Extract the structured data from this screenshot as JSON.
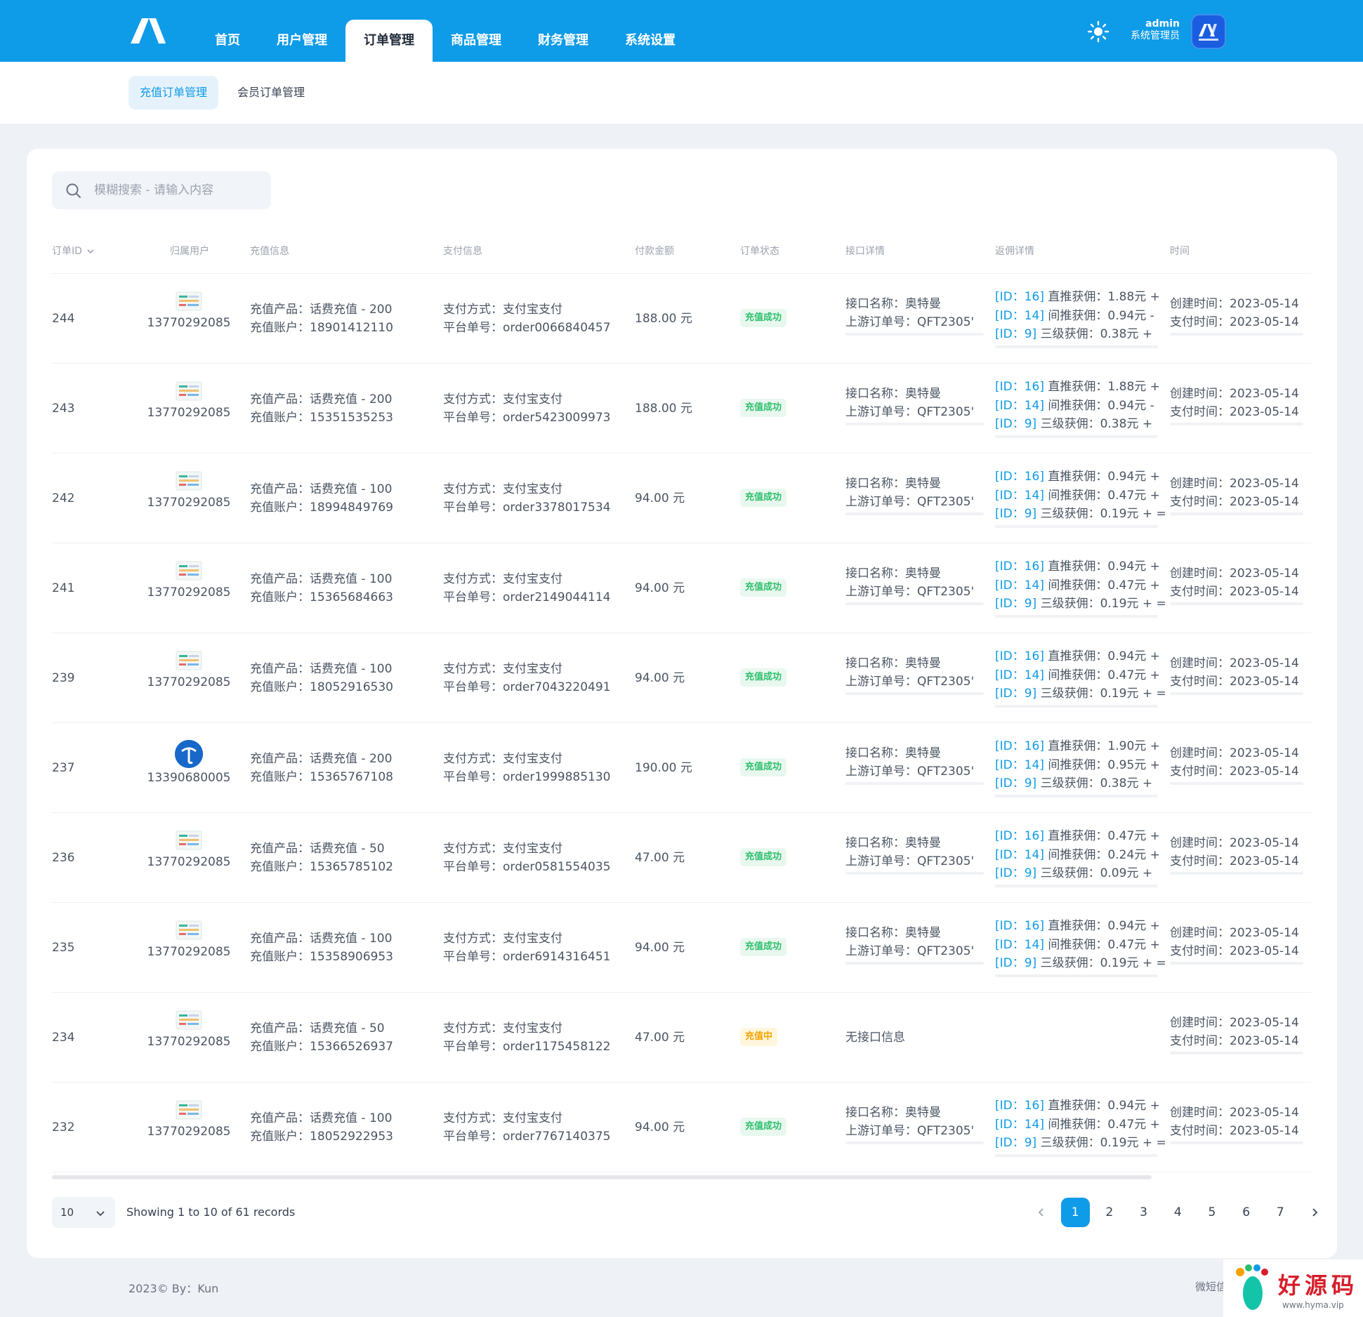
{
  "header": {
    "nav": [
      {
        "label": "首页",
        "active": false
      },
      {
        "label": "用户管理",
        "active": false
      },
      {
        "label": "订单管理",
        "active": true
      },
      {
        "label": "商品管理",
        "active": false
      },
      {
        "label": "财务管理",
        "active": false
      },
      {
        "label": "系统设置",
        "active": false
      }
    ],
    "user_name": "admin",
    "user_role": "系统管理员",
    "accent_color": "#0e9be8",
    "theme_icon": "sun-icon"
  },
  "subnav": {
    "tabs": [
      "充值订单管理",
      "会员订单管理"
    ],
    "active_tab": "充值订单管理"
  },
  "search": {
    "placeholder": "模糊搜索 - 请输入内容"
  },
  "table": {
    "columns": [
      "订单ID",
      "归属用户",
      "充值信息",
      "支付信息",
      "付款金额",
      "订单状态",
      "接口详情",
      "返佣详情",
      "时间"
    ],
    "rows": [
      {
        "id": "244",
        "avatar": "thumbnail",
        "user": "13770292085",
        "product": "充值产品：话费充值 - 200",
        "account": "充值账户：18901412110",
        "pay_method": "支付方式：支付宝支付",
        "platform_no": "平台单号：order0066840457",
        "amount": "188.00 元",
        "status": "充值成功",
        "status_type": "success",
        "api_name": "接口名称：奥特曼",
        "upstream_no": "上游订单号：QFT2305'",
        "rebates": [
          {
            "tag": "[ID：16]",
            "text": " 直推获佣：1.88元 +"
          },
          {
            "tag": "[ID：14]",
            "text": " 间推获佣：0.94元 -"
          },
          {
            "tag": "[ID：9]",
            "text": " 三级获佣：0.38元 +"
          }
        ],
        "created": "创建时间：2023-05-14",
        "paid": "支付时间：2023-05-14"
      },
      {
        "id": "243",
        "avatar": "thumbnail",
        "user": "13770292085",
        "product": "充值产品：话费充值 - 200",
        "account": "充值账户：15351535253",
        "pay_method": "支付方式：支付宝支付",
        "platform_no": "平台单号：order5423009973",
        "amount": "188.00 元",
        "status": "充值成功",
        "status_type": "success",
        "api_name": "接口名称：奥特曼",
        "upstream_no": "上游订单号：QFT2305'",
        "rebates": [
          {
            "tag": "[ID：16]",
            "text": " 直推获佣：1.88元 +"
          },
          {
            "tag": "[ID：14]",
            "text": " 间推获佣：0.94元 -"
          },
          {
            "tag": "[ID：9]",
            "text": " 三级获佣：0.38元 +"
          }
        ],
        "created": "创建时间：2023-05-14",
        "paid": "支付时间：2023-05-14"
      },
      {
        "id": "242",
        "avatar": "thumbnail",
        "user": "13770292085",
        "product": "充值产品：话费充值 - 100",
        "account": "充值账户：18994849769",
        "pay_method": "支付方式：支付宝支付",
        "platform_no": "平台单号：order3378017534",
        "amount": "94.00 元",
        "status": "充值成功",
        "status_type": "success",
        "api_name": "接口名称：奥特曼",
        "upstream_no": "上游订单号：QFT2305'",
        "rebates": [
          {
            "tag": "[ID：16]",
            "text": " 直推获佣：0.94元 +"
          },
          {
            "tag": "[ID：14]",
            "text": " 间推获佣：0.47元 +"
          },
          {
            "tag": "[ID：9]",
            "text": " 三级获佣：0.19元 + ="
          }
        ],
        "created": "创建时间：2023-05-14",
        "paid": "支付时间：2023-05-14"
      },
      {
        "id": "241",
        "avatar": "thumbnail",
        "user": "13770292085",
        "product": "充值产品：话费充值 - 100",
        "account": "充值账户：15365684663",
        "pay_method": "支付方式：支付宝支付",
        "platform_no": "平台单号：order2149044114",
        "amount": "94.00 元",
        "status": "充值成功",
        "status_type": "success",
        "api_name": "接口名称：奥特曼",
        "upstream_no": "上游订单号：QFT2305'",
        "rebates": [
          {
            "tag": "[ID：16]",
            "text": " 直推获佣：0.94元 +"
          },
          {
            "tag": "[ID：14]",
            "text": " 间推获佣：0.47元 +"
          },
          {
            "tag": "[ID：9]",
            "text": " 三级获佣：0.19元 + ="
          }
        ],
        "created": "创建时间：2023-05-14",
        "paid": "支付时间：2023-05-14"
      },
      {
        "id": "239",
        "avatar": "thumbnail",
        "user": "13770292085",
        "product": "充值产品：话费充值 - 100",
        "account": "充值账户：18052916530",
        "pay_method": "支付方式：支付宝支付",
        "platform_no": "平台单号：order7043220491",
        "amount": "94.00 元",
        "status": "充值成功",
        "status_type": "success",
        "api_name": "接口名称：奥特曼",
        "upstream_no": "上游订单号：QFT2305'",
        "rebates": [
          {
            "tag": "[ID：16]",
            "text": " 直推获佣：0.94元 +"
          },
          {
            "tag": "[ID：14]",
            "text": " 间推获佣：0.47元 +"
          },
          {
            "tag": "[ID：9]",
            "text": " 三级获佣：0.19元 + ="
          }
        ],
        "created": "创建时间：2023-05-14",
        "paid": "支付时间：2023-05-14"
      },
      {
        "id": "237",
        "avatar": "telecom-logo",
        "user": "13390680005",
        "product": "充值产品：话费充值 - 200",
        "account": "充值账户：15365767108",
        "pay_method": "支付方式：支付宝支付",
        "platform_no": "平台单号：order1999885130",
        "amount": "190.00 元",
        "status": "充值成功",
        "status_type": "success",
        "api_name": "接口名称：奥特曼",
        "upstream_no": "上游订单号：QFT2305'",
        "rebates": [
          {
            "tag": "[ID：16]",
            "text": " 直推获佣：1.90元 +"
          },
          {
            "tag": "[ID：14]",
            "text": " 间推获佣：0.95元 +"
          },
          {
            "tag": "[ID：9]",
            "text": " 三级获佣：0.38元 +"
          }
        ],
        "created": "创建时间：2023-05-14",
        "paid": "支付时间：2023-05-14"
      },
      {
        "id": "236",
        "avatar": "thumbnail",
        "user": "13770292085",
        "product": "充值产品：话费充值 - 50",
        "account": "充值账户：15365785102",
        "pay_method": "支付方式：支付宝支付",
        "platform_no": "平台单号：order0581554035",
        "amount": "47.00 元",
        "status": "充值成功",
        "status_type": "success",
        "api_name": "接口名称：奥特曼",
        "upstream_no": "上游订单号：QFT2305'",
        "rebates": [
          {
            "tag": "[ID：16]",
            "text": " 直推获佣：0.47元 +"
          },
          {
            "tag": "[ID：14]",
            "text": " 间推获佣：0.24元 +"
          },
          {
            "tag": "[ID：9]",
            "text": " 三级获佣：0.09元 +"
          }
        ],
        "created": "创建时间：2023-05-14",
        "paid": "支付时间：2023-05-14"
      },
      {
        "id": "235",
        "avatar": "thumbnail",
        "user": "13770292085",
        "product": "充值产品：话费充值 - 100",
        "account": "充值账户：15358906953",
        "pay_method": "支付方式：支付宝支付",
        "platform_no": "平台单号：order6914316451",
        "amount": "94.00 元",
        "status": "充值成功",
        "status_type": "success",
        "api_name": "接口名称：奥特曼",
        "upstream_no": "上游订单号：QFT2305'",
        "rebates": [
          {
            "tag": "[ID：16]",
            "text": " 直推获佣：0.94元 +"
          },
          {
            "tag": "[ID：14]",
            "text": " 间推获佣：0.47元 +"
          },
          {
            "tag": "[ID：9]",
            "text": " 三级获佣：0.19元 + ="
          }
        ],
        "created": "创建时间：2023-05-14",
        "paid": "支付时间：2023-05-14"
      },
      {
        "id": "234",
        "avatar": "thumbnail",
        "user": "13770292085",
        "product": "充值产品：话费充值 - 50",
        "account": "充值账户：15366526937",
        "pay_method": "支付方式：支付宝支付",
        "platform_no": "平台单号：order1175458122",
        "amount": "47.00 元",
        "status": "充值中",
        "status_type": "pending",
        "api_none": "无接口信息",
        "rebates": [],
        "created": "创建时间：2023-05-14",
        "paid": "支付时间：2023-05-14"
      },
      {
        "id": "232",
        "avatar": "thumbnail",
        "user": "13770292085",
        "product": "充值产品：话费充值 - 100",
        "account": "充值账户：18052922953",
        "pay_method": "支付方式：支付宝支付",
        "platform_no": "平台单号：order7767140375",
        "amount": "94.00 元",
        "status": "充值成功",
        "status_type": "success",
        "api_name": "接口名称：奥特曼",
        "upstream_no": "上游订单号：QFT2305'",
        "rebates": [
          {
            "tag": "[ID：16]",
            "text": " 直推获佣：0.94元 +"
          },
          {
            "tag": "[ID：14]",
            "text": " 间推获佣：0.47元 +"
          },
          {
            "tag": "[ID：9]",
            "text": " 三级获佣：0.19元 + ="
          }
        ],
        "created": "创建时间：2023-05-14",
        "paid": "支付时间：2023-05-14"
      }
    ]
  },
  "pagination": {
    "per_page": "10",
    "records_text": "Showing 1 to 10 of 61 records",
    "pages": [
      "1",
      "2",
      "3",
      "4",
      "5",
      "6",
      "7"
    ],
    "current": "1"
  },
  "footer": {
    "left": "2023© By：Kun",
    "right": "微短信"
  },
  "watermark": {
    "text": "好源码",
    "url": "www.hyma.vip"
  }
}
